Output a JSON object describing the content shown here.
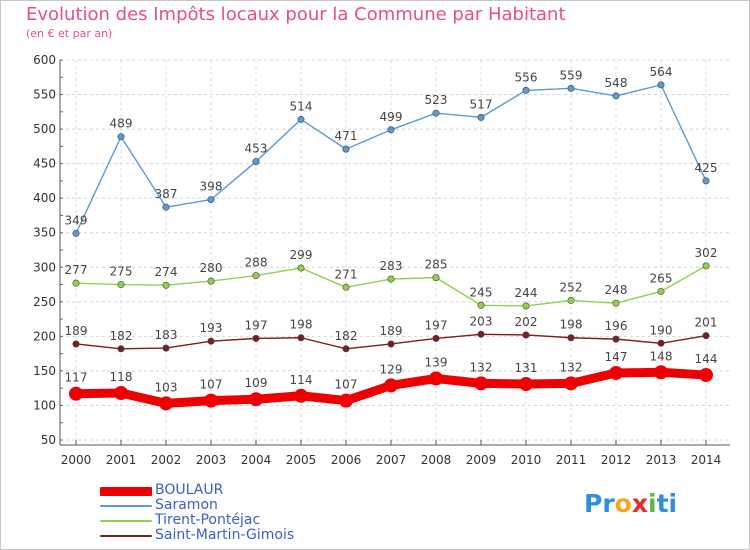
{
  "title": "Evolution des Impôts locaux pour la Commune par Habitant",
  "subtitle": "(en € et par an)",
  "logo": {
    "parts": [
      {
        "text": "Pr",
        "color": "#2f8fd8"
      },
      {
        "text": "o",
        "color": "#f5a623"
      },
      {
        "text": "x",
        "color": "#e8282c"
      },
      {
        "text": "i",
        "color": "#5bb548"
      },
      {
        "text": "ti",
        "color": "#2f8fd8"
      }
    ]
  },
  "chart_data": {
    "type": "line",
    "title": "Evolution des Impôts locaux pour la Commune par Habitant",
    "subtitle": "(en € et par an)",
    "xlabel": "",
    "ylabel": "",
    "x": [
      "2000",
      "2001",
      "2002",
      "2003",
      "2004",
      "2005",
      "2006",
      "2007",
      "2008",
      "2009",
      "2010",
      "2011",
      "2012",
      "2013",
      "2014"
    ],
    "ylim": [
      50,
      600
    ],
    "yticks": [
      50,
      100,
      150,
      200,
      250,
      300,
      350,
      400,
      450,
      500,
      550,
      600
    ],
    "grid": "horizontal dashed",
    "legend_position": "bottom-left",
    "series": [
      {
        "name": "BOULAUR",
        "color": "#ee0000",
        "values": [
          117,
          118,
          103,
          107,
          109,
          114,
          107,
          129,
          139,
          132,
          131,
          132,
          147,
          148,
          144
        ]
      },
      {
        "name": "Saramon",
        "color": "#5b9bd5",
        "values": [
          349,
          489,
          387,
          398,
          453,
          514,
          471,
          499,
          523,
          517,
          556,
          559,
          548,
          564,
          425
        ]
      },
      {
        "name": "Tirent-Pontéjac",
        "color": "#8fd14f",
        "values": [
          277,
          275,
          274,
          280,
          288,
          299,
          271,
          283,
          285,
          245,
          244,
          252,
          248,
          265,
          302
        ]
      },
      {
        "name": "Saint-Martin-Gimois",
        "color": "#7b1e1e",
        "values": [
          189,
          182,
          183,
          193,
          197,
          198,
          182,
          189,
          197,
          203,
          202,
          198,
          196,
          190,
          201
        ]
      }
    ]
  }
}
